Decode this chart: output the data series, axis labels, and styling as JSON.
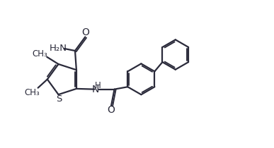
{
  "background_color": "#ffffff",
  "line_color": "#2a2a3a",
  "line_width": 1.6,
  "figsize": [
    3.87,
    2.1
  ],
  "dpi": 100,
  "xlim": [
    0,
    10.2
  ],
  "ylim": [
    0,
    5.5
  ]
}
